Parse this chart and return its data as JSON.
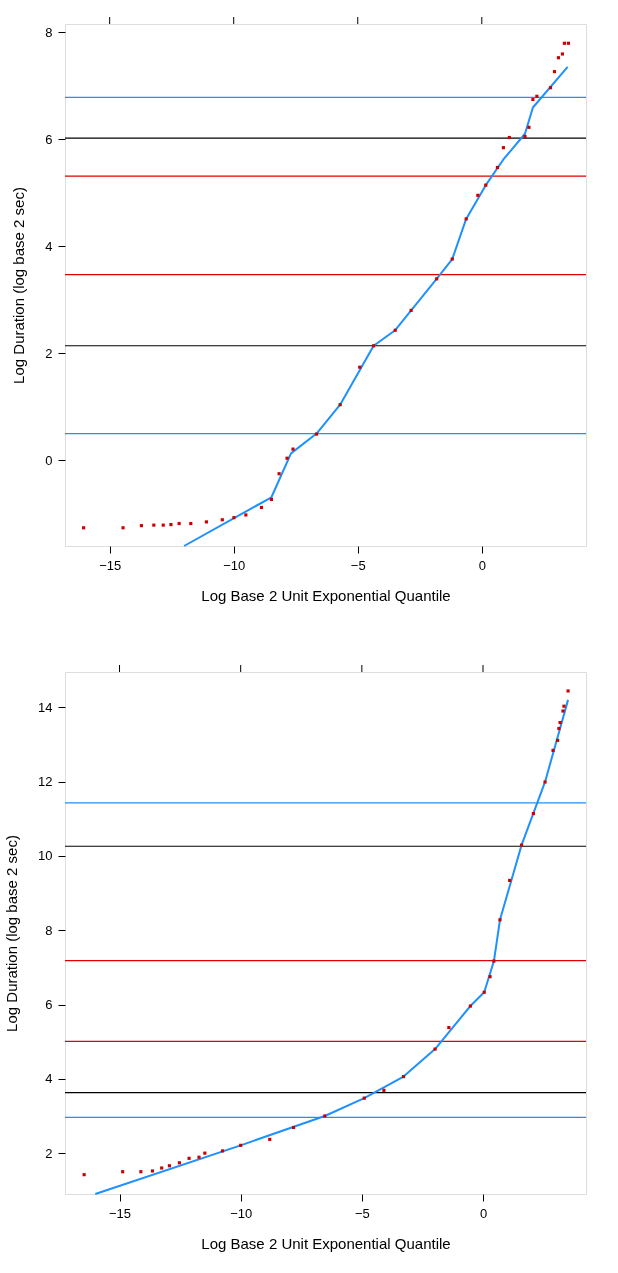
{
  "chart_data": [
    {
      "type": "scatter",
      "xlabel": "Log Base 2 Unit Exponential Quantile",
      "ylabel": "Log Duration (log base 2 sec)",
      "xlim": [
        -16.8,
        4.2
      ],
      "ylim": [
        -1.6,
        8.15
      ],
      "xticks": [
        {
          "value": -15,
          "label": "−15"
        },
        {
          "value": -10,
          "label": "−10"
        },
        {
          "value": -5,
          "label": "−5"
        },
        0
      ],
      "yticks": [
        0,
        2,
        4,
        6,
        8
      ],
      "grid": false,
      "series": [
        {
          "marker": "square",
          "color": "#cc0000",
          "x": [
            -16.05,
            -14.46,
            -13.72,
            -13.22,
            -12.84,
            -12.53,
            -12.2,
            -11.73,
            -11.1,
            -10.46,
            -9.99,
            -9.51,
            -8.88,
            -8.48,
            -8.17,
            -7.85,
            -7.61,
            -6.66,
            -5.71,
            -4.92,
            -4.36,
            -3.49,
            -2.85,
            -1.82,
            -1.19,
            -0.63,
            -0.16,
            0.16,
            0.63,
            0.87,
            1.11,
            1.74,
            1.9,
            2.06,
            2.22,
            2.77,
            2.93,
            3.09,
            3.25,
            3.33,
            3.49
          ],
          "values": [
            -1.26,
            -1.26,
            -1.22,
            -1.21,
            -1.21,
            -1.2,
            -1.18,
            -1.18,
            -1.15,
            -1.11,
            -1.07,
            -1.02,
            -0.88,
            -0.73,
            -0.25,
            0.04,
            0.21,
            0.49,
            1.04,
            1.74,
            2.14,
            2.43,
            2.8,
            3.39,
            3.76,
            4.51,
            4.95,
            5.14,
            5.47,
            5.84,
            6.03,
            6.05,
            6.22,
            6.74,
            6.8,
            6.96,
            7.26,
            7.52,
            7.59,
            7.79,
            7.79
          ]
        },
        {
          "type": "line",
          "color": "#1e90ff",
          "x": [
            -12.0,
            -8.48,
            -7.69,
            -6.66,
            -5.71,
            -4.36,
            -3.49,
            -1.82,
            -1.19,
            -0.63,
            0.16,
            0.87,
            1.74,
            2.06,
            3.46
          ],
          "values": [
            -1.6,
            -0.69,
            0.13,
            0.5,
            1.04,
            2.14,
            2.43,
            3.39,
            3.76,
            4.51,
            5.14,
            5.62,
            6.1,
            6.59,
            7.35
          ]
        }
      ],
      "ref_lines": [
        {
          "axis": "y",
          "value": 6.78,
          "color": "#1e90ff"
        },
        {
          "axis": "y",
          "value": 6.02,
          "color": "#000000"
        },
        {
          "axis": "y",
          "value": 5.31,
          "color": "#e00000"
        },
        {
          "axis": "y",
          "value": 3.47,
          "color": "#e00000"
        },
        {
          "axis": "y",
          "value": 2.14,
          "color": "#000000"
        },
        {
          "axis": "y",
          "value": 0.5,
          "color": "#1e90ff"
        }
      ]
    },
    {
      "type": "scatter",
      "xlabel": "Log Base 2 Unit Exponential Quantile",
      "ylabel": "Log Duration (log base 2 sec)",
      "xlim": [
        -17.25,
        4.25
      ],
      "ylim": [
        0.9,
        14.95
      ],
      "xticks": [
        {
          "value": -15,
          "label": "−15"
        },
        {
          "value": -10,
          "label": "−10"
        },
        {
          "value": -5,
          "label": "−5"
        },
        0
      ],
      "yticks": [
        2,
        4,
        6,
        8,
        10,
        12,
        14
      ],
      "grid": false,
      "series": [
        {
          "marker": "square",
          "color": "#cc0000",
          "x": [
            -16.46,
            -14.87,
            -14.12,
            -13.64,
            -13.26,
            -12.94,
            -12.53,
            -12.13,
            -11.72,
            -11.48,
            -10.75,
            -10.0,
            -8.8,
            -7.82,
            -6.53,
            -4.9,
            -4.09,
            -3.28,
            -1.98,
            -1.41,
            -0.52,
            0.05,
            0.29,
            0.45,
            0.7,
            1.1,
            1.59,
            2.08,
            2.56,
            2.89,
            3.08,
            3.13,
            3.18,
            3.3,
            3.34,
            3.51
          ],
          "values": [
            1.42,
            1.5,
            1.5,
            1.52,
            1.6,
            1.66,
            1.74,
            1.86,
            1.89,
            2.0,
            2.06,
            2.21,
            2.37,
            2.69,
            3.0,
            3.48,
            3.69,
            4.06,
            4.8,
            5.38,
            5.96,
            6.33,
            6.75,
            7.17,
            8.28,
            9.34,
            10.29,
            11.14,
            11.99,
            12.84,
            13.11,
            13.43,
            13.59,
            13.9,
            14.03,
            14.44
          ]
        },
        {
          "type": "line",
          "color": "#1e90ff",
          "x": [
            -16.0,
            -10.0,
            -6.53,
            -4.9,
            -3.28,
            -1.98,
            -0.52,
            0.05,
            0.45,
            0.7,
            1.59,
            2.56,
            3.51
          ],
          "values": [
            0.9,
            2.21,
            3.0,
            3.48,
            4.06,
            4.8,
            5.96,
            6.33,
            7.17,
            8.28,
            10.29,
            11.99,
            14.2
          ]
        }
      ],
      "ref_lines": [
        {
          "axis": "y",
          "value": 11.43,
          "color": "#1e90ff"
        },
        {
          "axis": "y",
          "value": 10.26,
          "color": "#000000"
        },
        {
          "axis": "y",
          "value": 7.18,
          "color": "#e00000"
        },
        {
          "axis": "y",
          "value": 5.01,
          "color": "#e00000"
        },
        {
          "axis": "y",
          "value": 3.63,
          "color": "#000000"
        },
        {
          "axis": "y",
          "value": 2.96,
          "color": "#1e90ff"
        }
      ]
    }
  ]
}
